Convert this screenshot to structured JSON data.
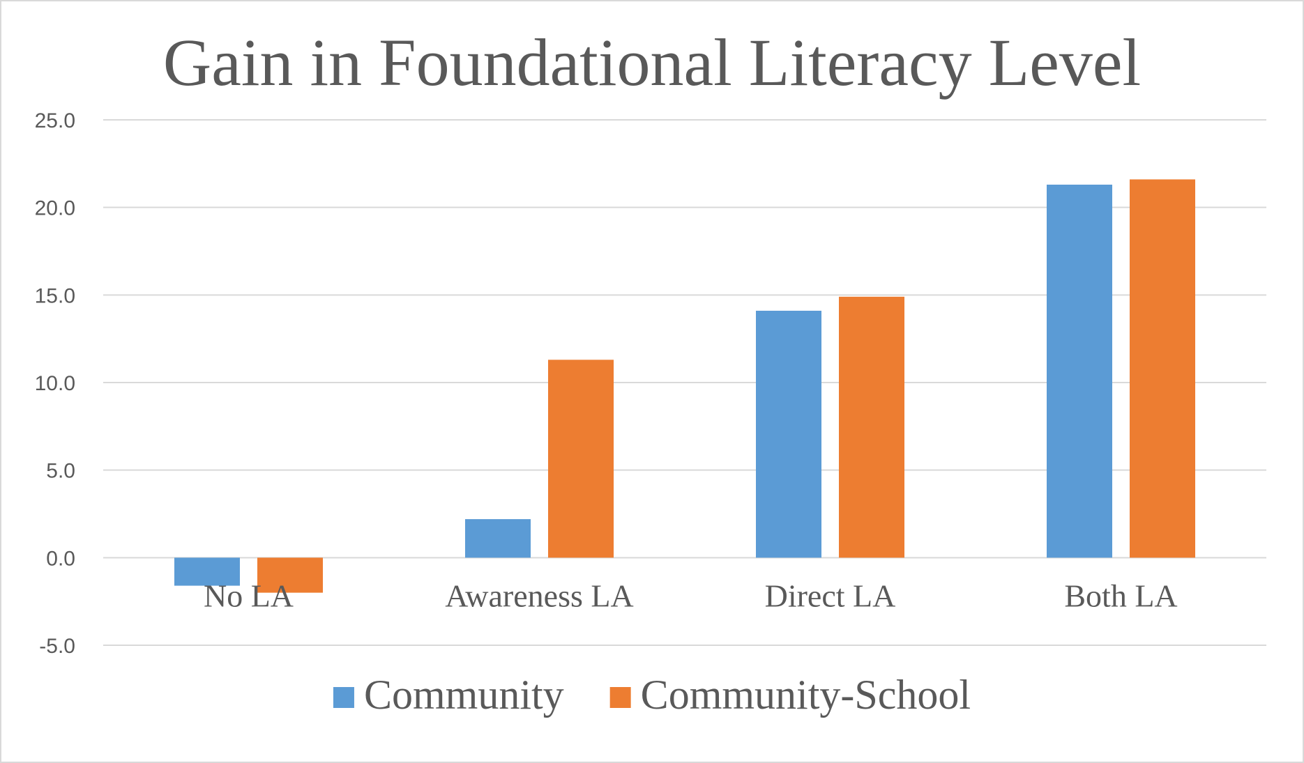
{
  "chart_data": {
    "type": "bar",
    "title": "Gain in Foundational Literacy Level",
    "xlabel": "",
    "ylabel": "",
    "categories": [
      "No LA",
      "Awareness LA",
      "Direct LA",
      "Both LA"
    ],
    "series": [
      {
        "name": "Community",
        "values": [
          -1.6,
          2.2,
          14.1,
          21.3
        ],
        "color": "#5b9bd5"
      },
      {
        "name": "Community-School",
        "values": [
          -2.0,
          11.3,
          14.9,
          21.6
        ],
        "color": "#ed7d31"
      }
    ],
    "ylim": [
      -5,
      25
    ],
    "yticks": [
      "25.0",
      "20.0",
      "15.0",
      "10.0",
      "5.0",
      "0.0",
      "-5.0"
    ],
    "ytick_values": [
      25,
      20,
      15,
      10,
      5,
      0,
      -5
    ],
    "grid": true,
    "legend_position": "bottom"
  }
}
